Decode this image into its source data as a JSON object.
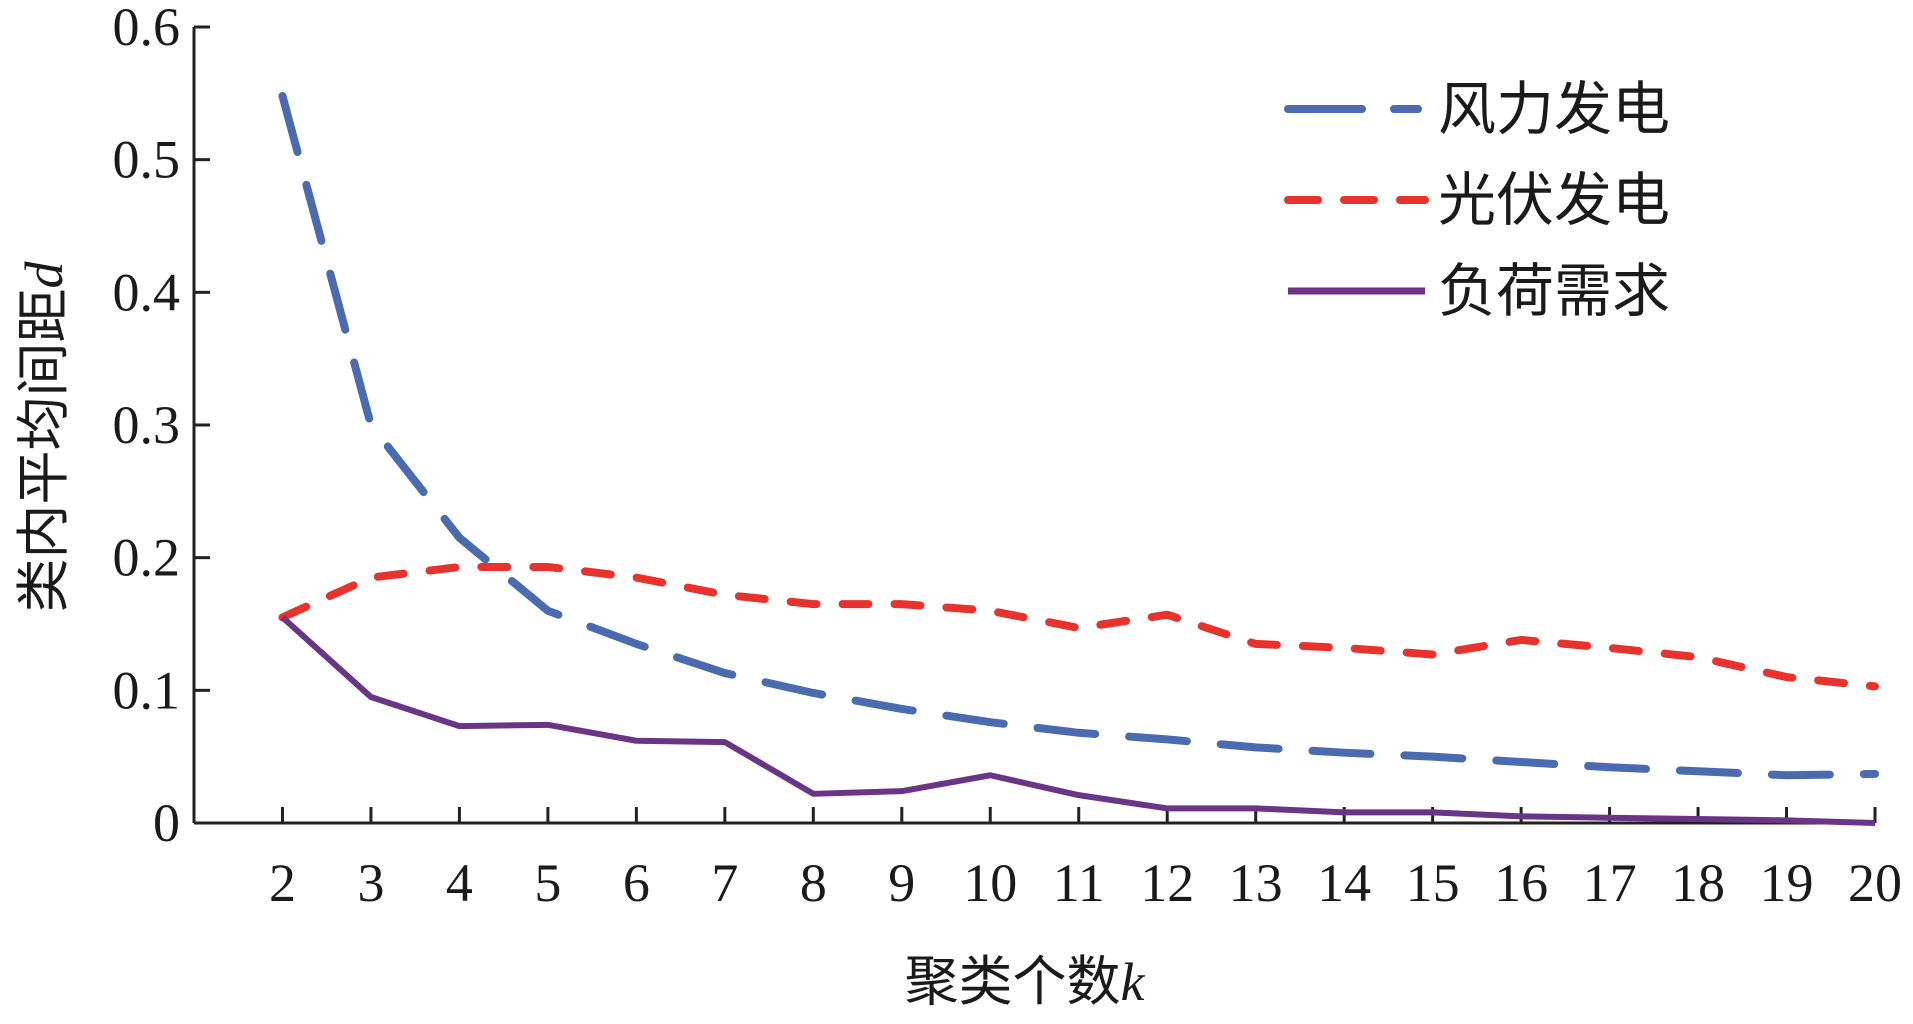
{
  "chart_data": {
    "type": "line",
    "x": [
      2,
      3,
      4,
      5,
      6,
      7,
      8,
      9,
      10,
      11,
      12,
      13,
      14,
      15,
      16,
      17,
      18,
      19,
      20
    ],
    "xlim": [
      1,
      20
    ],
    "ylim": [
      0,
      0.6
    ],
    "xticks": [
      "2",
      "3",
      "4",
      "5",
      "6",
      "7",
      "8",
      "9",
      "10",
      "11",
      "12",
      "13",
      "14",
      "15",
      "16",
      "17",
      "18",
      "19",
      "20"
    ],
    "yticks": [
      "0",
      "0.1",
      "0.2",
      "0.3",
      "0.4",
      "0.5",
      "0.6"
    ],
    "xlabel": "聚类个数",
    "xlabel_var": "k",
    "ylabel": "类内平均间距",
    "ylabel_var": "d",
    "grid": false,
    "legend_position": "top-right",
    "series": [
      {
        "name": "风力发电",
        "color": "#4A6BB0",
        "style": "long-dash",
        "values": [
          0.548,
          0.3,
          0.215,
          0.16,
          0.135,
          0.113,
          0.098,
          0.086,
          0.076,
          0.068,
          0.063,
          0.057,
          0.053,
          0.05,
          0.046,
          0.042,
          0.039,
          0.036,
          0.037
        ]
      },
      {
        "name": "光伏发电",
        "color": "#E8322B",
        "style": "dash",
        "values": [
          0.155,
          0.185,
          0.193,
          0.193,
          0.185,
          0.172,
          0.165,
          0.165,
          0.16,
          0.147,
          0.157,
          0.135,
          0.132,
          0.127,
          0.138,
          0.132,
          0.125,
          0.11,
          0.103
        ]
      },
      {
        "name": "负荷需求",
        "color": "#6A3587",
        "style": "solid",
        "values": [
          0.155,
          0.095,
          0.073,
          0.074,
          0.062,
          0.061,
          0.022,
          0.024,
          0.036,
          0.021,
          0.011,
          0.011,
          0.008,
          0.008,
          0.005,
          0.004,
          0.003,
          0.002,
          0.0
        ]
      }
    ]
  }
}
